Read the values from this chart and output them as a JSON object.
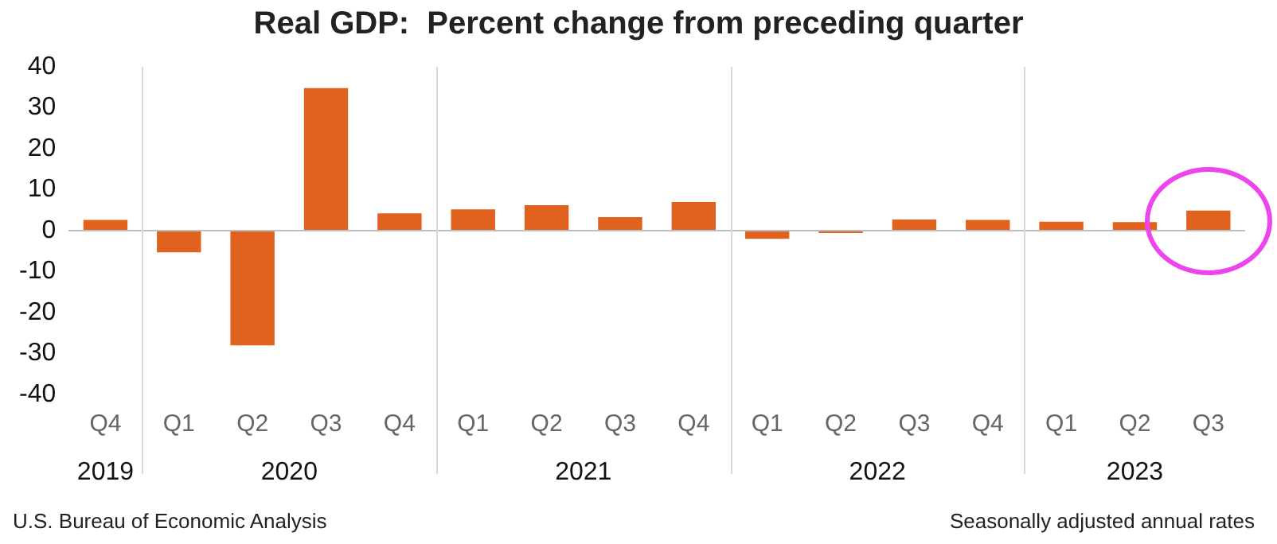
{
  "chart_data": {
    "type": "bar",
    "title": "Real GDP:  Percent change from preceding quarter",
    "categories": [
      "Q4",
      "Q1",
      "Q2",
      "Q3",
      "Q4",
      "Q1",
      "Q2",
      "Q3",
      "Q4",
      "Q1",
      "Q2",
      "Q3",
      "Q4",
      "Q1",
      "Q2",
      "Q3"
    ],
    "values": [
      2.6,
      -5.3,
      -28.0,
      34.8,
      4.2,
      5.2,
      6.2,
      3.3,
      7.0,
      -2.0,
      -0.6,
      2.7,
      2.6,
      2.2,
      2.1,
      4.9
    ],
    "color": "#e0621e",
    "ylim": [
      -40,
      40
    ],
    "yticks": [
      -40,
      -30,
      -20,
      -10,
      0,
      10,
      20,
      30,
      40
    ],
    "grid": false,
    "legend": false,
    "annotations": [
      "2019",
      "2020",
      "2021",
      "2022",
      "2023",
      "U.S. Bureau of Economic Analysis",
      "Seasonally adjusted annual rates"
    ]
  }
}
